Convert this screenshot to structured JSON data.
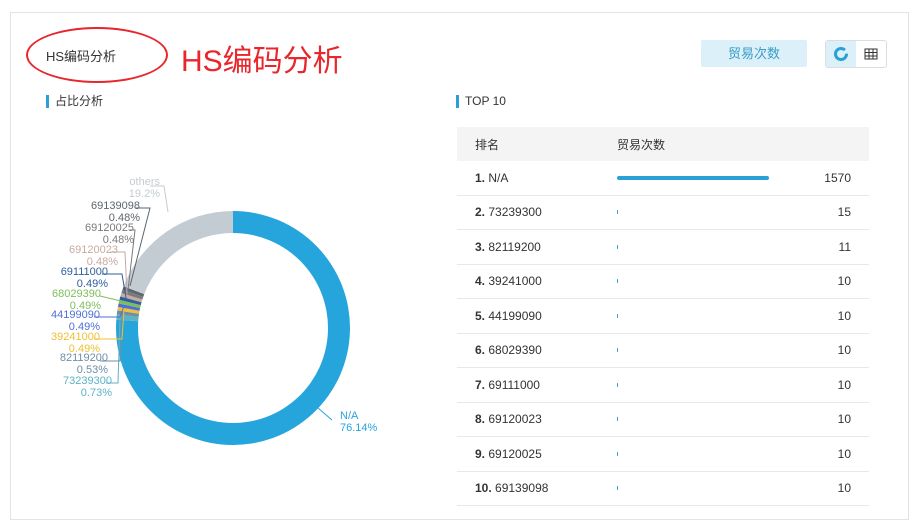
{
  "header": {
    "title": "HS编码分析",
    "annotation": "HS编码分析",
    "metric_button": "贸易次数",
    "view_icons": [
      "donut-chart-icon",
      "table-icon"
    ]
  },
  "left": {
    "section_title": "占比分析"
  },
  "right": {
    "section_title": "TOP 10",
    "columns": [
      "排名",
      "贸易次数"
    ],
    "rows": [
      {
        "rank": "1.",
        "code": "N/A",
        "count": "1570",
        "value": 1570
      },
      {
        "rank": "2.",
        "code": "73239300",
        "count": "15",
        "value": 15
      },
      {
        "rank": "3.",
        "code": "82119200",
        "count": "11",
        "value": 11
      },
      {
        "rank": "4.",
        "code": "39241000",
        "count": "10",
        "value": 10
      },
      {
        "rank": "5.",
        "code": "44199090",
        "count": "10",
        "value": 10
      },
      {
        "rank": "6.",
        "code": "68029390",
        "count": "10",
        "value": 10
      },
      {
        "rank": "7.",
        "code": "69111000",
        "count": "10",
        "value": 10
      },
      {
        "rank": "8.",
        "code": "69120023",
        "count": "10",
        "value": 10
      },
      {
        "rank": "9.",
        "code": "69120025",
        "count": "10",
        "value": 10
      },
      {
        "rank": "10.",
        "code": "69139098",
        "count": "10",
        "value": 10
      }
    ]
  },
  "chart_data": {
    "type": "pie",
    "donut": true,
    "slices": [
      {
        "name": "N/A",
        "pct": "76.14%",
        "value": 76.14,
        "color": "#26a5dc"
      },
      {
        "name": "73239300",
        "pct": "0.73%",
        "value": 0.73,
        "color": "#5cb3c4"
      },
      {
        "name": "82119200",
        "pct": "0.53%",
        "value": 0.53,
        "color": "#6f8ea8"
      },
      {
        "name": "39241000",
        "pct": "0.49%",
        "value": 0.49,
        "color": "#f0c030"
      },
      {
        "name": "44199090",
        "pct": "0.49%",
        "value": 0.49,
        "color": "#4f6fd8"
      },
      {
        "name": "68029390",
        "pct": "0.49%",
        "value": 0.49,
        "color": "#7cbf5a"
      },
      {
        "name": "69111000",
        "pct": "0.49%",
        "value": 0.49,
        "color": "#2f5f9f"
      },
      {
        "name": "69120023",
        "pct": "0.48%",
        "value": 0.48,
        "color": "#c9a9a0"
      },
      {
        "name": "69120025",
        "pct": "0.48%",
        "value": 0.48,
        "color": "#7a7a7a"
      },
      {
        "name": "69139098",
        "pct": "0.48%",
        "value": 0.48,
        "color": "#5a6670"
      },
      {
        "name": "others",
        "pct": "19.2%",
        "value": 19.2,
        "color": "#c4ccd3"
      }
    ]
  }
}
